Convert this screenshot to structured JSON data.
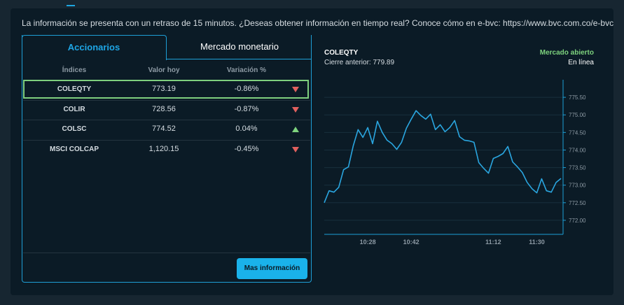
{
  "notice": "La información se presenta con un retraso de 15 minutos. ¿Deseas obtener información en tiempo real? Conoce cómo en e-bvc: https://www.bvc.com.co/e-bvc",
  "tabs": [
    "Accionarios",
    "Mercado monetario"
  ],
  "table": {
    "headers": [
      "Índices",
      "Valor hoy",
      "Variación %"
    ],
    "rows": [
      [
        "COLEQTY",
        "773.19",
        "-0.86%"
      ],
      [
        "COLIR",
        "728.56",
        "-0.87%"
      ],
      [
        "COLSC",
        "774.52",
        "0.04%"
      ],
      [
        "MSCI COLCAP",
        "1,120.15",
        "-0.45%"
      ]
    ]
  },
  "button": "Mas información",
  "chart_data": {
    "type": "line",
    "title": "COLEQTY",
    "subtitle": "Cierre anterior: 779.89",
    "annotations": [
      "Mercado abierto",
      "En línea"
    ],
    "categories": [
      null,
      null,
      null,
      null,
      null,
      null,
      null,
      null,
      null,
      "10:28",
      null,
      null,
      null,
      null,
      null,
      null,
      null,
      null,
      "10:42",
      null,
      null,
      null,
      null,
      null,
      null,
      null,
      null,
      null,
      null,
      null,
      null,
      null,
      null,
      null,
      null,
      "11:12",
      null,
      null,
      null,
      null,
      null,
      null,
      null,
      null,
      "11:30",
      null,
      null,
      null,
      null,
      null
    ],
    "values": [
      772.5,
      772.84,
      772.8,
      772.94,
      773.44,
      773.52,
      774.12,
      774.58,
      774.36,
      774.64,
      774.18,
      774.82,
      774.5,
      774.28,
      774.18,
      774.02,
      774.22,
      774.62,
      774.88,
      775.12,
      774.98,
      774.88,
      775.02,
      774.58,
      774.72,
      774.52,
      774.64,
      774.84,
      774.38,
      774.28,
      774.26,
      774.22,
      773.64,
      773.48,
      773.34,
      773.76,
      773.82,
      773.9,
      774.1,
      773.66,
      773.52,
      773.36,
      773.08,
      772.9,
      772.78,
      773.18,
      772.84,
      772.8,
      773.08,
      773.19
    ],
    "color": "#2aa6e0",
    "ylim": [
      771.6,
      776.0
    ],
    "yticks": [
      {
        "value": 772,
        "label": "772.00"
      },
      {
        "value": 772.5,
        "label": "772.50"
      },
      {
        "value": 773,
        "label": "773.00"
      },
      {
        "value": 773.5,
        "label": "773.50"
      },
      {
        "value": 774,
        "label": "774.00"
      },
      {
        "value": 774.5,
        "label": "774.50"
      },
      {
        "value": 775,
        "label": "775.00"
      },
      {
        "value": 775.5,
        "label": "775.50"
      }
    ],
    "grid": true
  }
}
